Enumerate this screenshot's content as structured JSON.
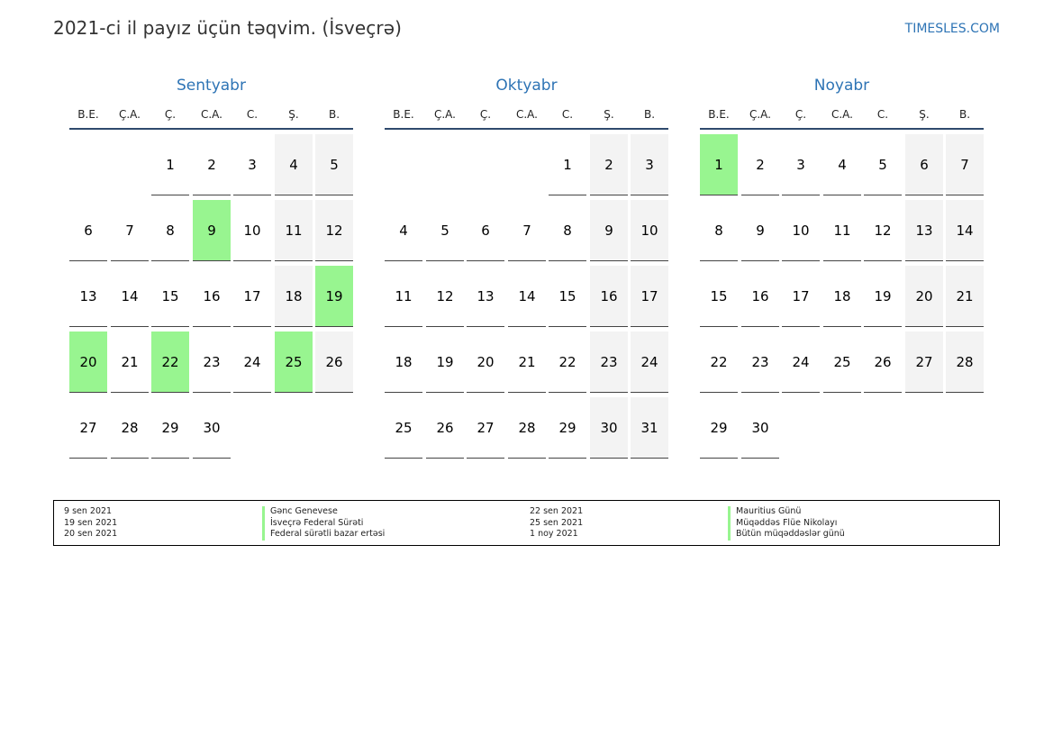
{
  "title": "2021-ci il payız üçün təqvim. (İsveçrə)",
  "site": "TIMESLES.COM",
  "weekdays": [
    "B.E.",
    "Ç.A.",
    "Ç.",
    "C.A.",
    "C.",
    "Ş.",
    "B."
  ],
  "colors": {
    "accent": "#2e74b5",
    "holiday": "#98f590",
    "weekend": "#f3f3f3"
  },
  "months": [
    {
      "name": "Sentyabr",
      "first_weekday": 2,
      "days": 30,
      "holidays": [
        9,
        19,
        20,
        22,
        25
      ]
    },
    {
      "name": "Oktyabr",
      "first_weekday": 4,
      "days": 31,
      "holidays": []
    },
    {
      "name": "Noyabr",
      "first_weekday": 0,
      "days": 30,
      "holidays": [
        1
      ]
    }
  ],
  "legend": [
    {
      "date": "9 sen 2021",
      "name": "Gənc Genevese"
    },
    {
      "date": "19 sen 2021",
      "name": "İsveçrə Federal Sürəti"
    },
    {
      "date": "20 sen 2021",
      "name": "Federal sürətli bazar ertəsi"
    },
    {
      "date": "22 sen 2021",
      "name": "Mauritius Günü"
    },
    {
      "date": "25 sen 2021",
      "name": "Müqəddəs Flüe Nikolayı"
    },
    {
      "date": "1 noy 2021",
      "name": "Bütün müqəddəslər günü"
    }
  ]
}
